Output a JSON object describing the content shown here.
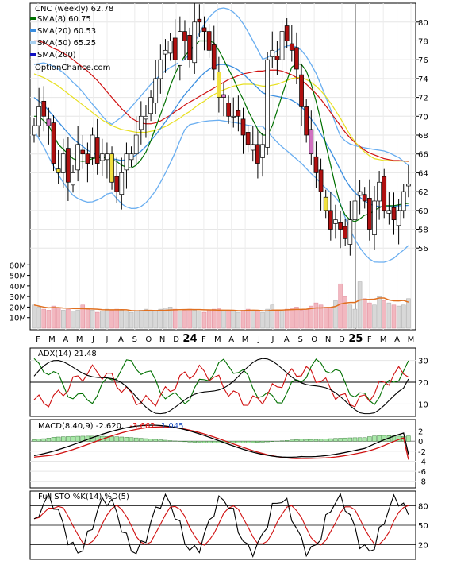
{
  "chart_data": {
    "type": "candlestick-stock-chart",
    "title": "CNC (weekly) 62.78",
    "watermark": "OptionChance.com",
    "price_axis": {
      "ylim": [
        54,
        82
      ],
      "ticks": [
        56,
        58,
        60,
        62,
        64,
        66,
        68,
        70,
        72,
        74,
        76,
        78,
        80
      ]
    },
    "volume_axis": {
      "ylim": [
        0,
        70
      ],
      "tick_labels": [
        "10M",
        "20M",
        "30M",
        "40M",
        "50M",
        "60M"
      ],
      "tick_values": [
        10,
        20,
        30,
        40,
        50,
        60
      ]
    },
    "x_labels": [
      "F",
      "M",
      "A",
      "M",
      "J",
      "J",
      "A",
      "S",
      "O",
      "N",
      "D",
      "24",
      "F",
      "M",
      "A",
      "M",
      "J",
      "J",
      "A",
      "S",
      "O",
      "N",
      "D",
      "25",
      "F",
      "M",
      "A",
      "M"
    ],
    "legend": [
      {
        "label": "SMA(8) 60.75",
        "color": "#007000"
      },
      {
        "label": "SMA(20) 60.53",
        "color": "#3a8ee0"
      },
      {
        "label": "SMA(50) 65.25",
        "color": "#e8e830"
      },
      {
        "label": "SMA(200)",
        "color": "#1010c0"
      }
    ],
    "series_colors": {
      "sma8": "#007000",
      "sma20": "#3a8ee0",
      "sma50": "#e8e830",
      "sma200": "#d01010",
      "bb": "#9ec8f0",
      "up": "#ffffff",
      "down": "#b01010"
    },
    "close_weekly": [
      69,
      71,
      70,
      69,
      65,
      64,
      66,
      63,
      64,
      67,
      66,
      65,
      68,
      65,
      66,
      66,
      63,
      62,
      64,
      66,
      66,
      68,
      70,
      70,
      72,
      74,
      76,
      77,
      78,
      76,
      79,
      78,
      76,
      80,
      80,
      79,
      77,
      75,
      72,
      72,
      70,
      70,
      70,
      68,
      67,
      67,
      65,
      67,
      76,
      77,
      76,
      79,
      78,
      77,
      75,
      71,
      68,
      66,
      64,
      62,
      60,
      58,
      59,
      58,
      57,
      59,
      61,
      62,
      61,
      58,
      61,
      63,
      60,
      60,
      59,
      60,
      62,
      62.78
    ],
    "sma8": [
      70,
      70,
      69.5,
      69,
      68,
      67,
      66.5,
      66,
      65.5,
      65.3,
      65.2,
      65.3,
      65.5,
      65.6,
      65.6,
      65.6,
      65.4,
      65.2,
      64.8,
      64.6,
      64.5,
      64.8,
      65.4,
      66.2,
      67.4,
      68.8,
      70.2,
      71.6,
      73.2,
      74.5,
      75.6,
      76.4,
      77,
      77.5,
      78,
      78,
      78,
      77.8,
      77,
      76,
      75,
      74,
      72.8,
      71.8,
      70.6,
      69.6,
      68.6,
      68,
      68,
      69,
      70.6,
      72.2,
      73.8,
      75.2,
      75.6,
      75.5,
      74.8,
      73.4,
      71.6,
      69.5,
      67,
      64.8,
      62.5,
      60.6,
      59.5,
      59,
      58.8,
      59.1,
      59.5,
      59.6,
      60,
      60.3,
      60.5,
      60.5,
      60.5,
      60.6,
      60.7,
      60.75
    ],
    "sma20": [
      72,
      71.6,
      71.2,
      70.6,
      70,
      69.4,
      68.8,
      68.2,
      67.6,
      67.2,
      66.8,
      66.4,
      66.1,
      65.9,
      65.7,
      65.6,
      65.5,
      65.4,
      65.3,
      65.4,
      65.6,
      65.9,
      66.3,
      66.8,
      67.4,
      68,
      68.7,
      69.4,
      70.1,
      70.8,
      71.6,
      72.3,
      72.9,
      73.5,
      74.1,
      74.6,
      75,
      75.3,
      75.5,
      75.5,
      75.4,
      75.2,
      74.9,
      74.5,
      74,
      73.5,
      73,
      72.5,
      72.3,
      72.2,
      72.1,
      72,
      71.9,
      71.7,
      71.4,
      71,
      70.4,
      69.7,
      69,
      68.1,
      67.2,
      66.3,
      65.3,
      64.3,
      63.3,
      62.5,
      61.9,
      61.4,
      61,
      60.7,
      60.5,
      60.4,
      60.4,
      60.4,
      60.4,
      60.5,
      60.5,
      60.53
    ],
    "sma50": [
      74.5,
      74.3,
      74.1,
      73.8,
      73.5,
      73.2,
      72.8,
      72.4,
      72,
      71.6,
      71.2,
      70.8,
      70.4,
      70,
      69.6,
      69.3,
      69,
      68.8,
      68.6,
      68.5,
      68.4,
      68.3,
      68.3,
      68.3,
      68.4,
      68.5,
      68.7,
      68.9,
      69.2,
      69.5,
      69.8,
      70.2,
      70.5,
      70.9,
      71.3,
      71.6,
      72,
      72.3,
      72.6,
      72.8,
      73,
      73.2,
      73.3,
      73.4,
      73.4,
      73.4,
      73.3,
      73.2,
      73.2,
      73.3,
      73.4,
      73.6,
      73.8,
      74,
      74.1,
      74.1,
      73.9,
      73.6,
      73.2,
      72.7,
      72.1,
      71.4,
      70.6,
      69.8,
      68.9,
      68,
      67.3,
      66.7,
      66.2,
      65.8,
      65.5,
      65.4,
      65.3,
      65.3,
      65.25,
      65.25,
      65.25,
      65.25
    ],
    "sma200": [
      78,
      78,
      77.8,
      77.5,
      77.2,
      77,
      76.7,
      76.4,
      76,
      75.6,
      75.2,
      74.8,
      74.3,
      73.8,
      73.2,
      72.6,
      72,
      71.4,
      70.8,
      70.3,
      69.8,
      69.5,
      69.3,
      69.2,
      69.2,
      69.3,
      69.5,
      69.8,
      70.1,
      70.5,
      70.8,
      71.2,
      71.5,
      71.8,
      72.1,
      72.4,
      72.7,
      73,
      73.3,
      73.6,
      73.9,
      74.1,
      74.3,
      74.5,
      74.6,
      74.7,
      74.8,
      74.8,
      74.9,
      74.9,
      74.9,
      74.8,
      74.6,
      74.4,
      74.1,
      73.8,
      73.4,
      72.9,
      72.4,
      71.8,
      71.1,
      70.4,
      69.7,
      69,
      68.3,
      67.7,
      67.2,
      66.8,
      66.4,
      66.1,
      65.9,
      65.7,
      65.5,
      65.4,
      65.3,
      65.3,
      65.25,
      65.2
    ],
    "volume_M": [
      22,
      20,
      18,
      17,
      21,
      19,
      17,
      18,
      16,
      17,
      22,
      18,
      17,
      15,
      16,
      18,
      17,
      18,
      17,
      16,
      15,
      16,
      17,
      18,
      16,
      17,
      18,
      19,
      20,
      18,
      16,
      17,
      18,
      17,
      16,
      15,
      17,
      18,
      19,
      17,
      16,
      16,
      15,
      17,
      18,
      17,
      16,
      15,
      18,
      22,
      17,
      16,
      18,
      19,
      20,
      17,
      18,
      21,
      24,
      22,
      20,
      19,
      26,
      42,
      30,
      22,
      18,
      44,
      28,
      24,
      22,
      30,
      26,
      24,
      22,
      21,
      22,
      28
    ],
    "adx": {
      "label": "ADX(14) 21.48",
      "ylim": [
        5,
        35
      ],
      "ticks": [
        10,
        20,
        30
      ],
      "value": 21.48
    },
    "macd": {
      "label": "MACD(8,40,9) -2.620,",
      "signal_label": "-3.662",
      "hist_label": "1.045",
      "ylim": [
        -9,
        4
      ],
      "ticks": [
        -8,
        -6,
        -4,
        -2,
        0,
        2
      ],
      "value": -2.62,
      "signal": -3.662,
      "hist": 1.045
    },
    "sto": {
      "label": "Full STO %K(14) %D(5)",
      "ylim": [
        0,
        100
      ],
      "ticks": [
        20,
        50,
        80
      ]
    }
  }
}
